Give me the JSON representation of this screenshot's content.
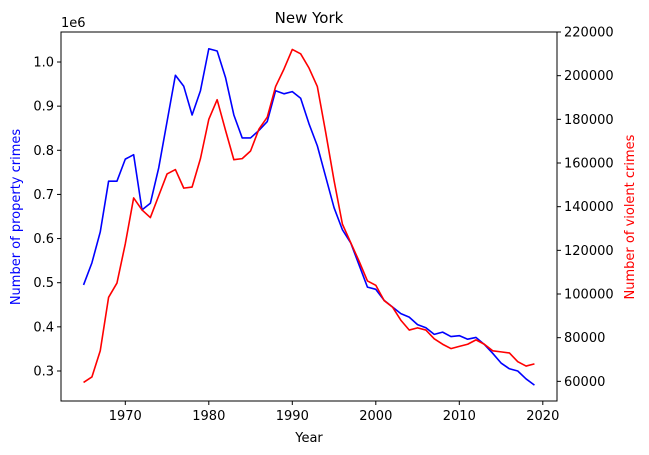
{
  "chart_data": {
    "type": "line",
    "title": "New York",
    "xlabel": "Year",
    "xlim": [
      1962.3,
      2021.7
    ],
    "x_ticks": [
      1970,
      1980,
      1990,
      2000,
      2010,
      2020
    ],
    "left_axis": {
      "label": "Number of property crimes",
      "label_color": "#0000ff",
      "offset_text": "1e6",
      "ylim": [
        0.232,
        1.068
      ],
      "ticks": [
        0.3,
        0.4,
        0.5,
        0.6,
        0.7,
        0.8,
        0.9,
        1.0
      ],
      "tick_labels": [
        "0.3",
        "0.4",
        "0.5",
        "0.6",
        "0.7",
        "0.8",
        "0.9",
        "1.0"
      ]
    },
    "right_axis": {
      "label": "Number of violent crimes",
      "label_color": "#ff0000",
      "ylim": [
        51000,
        220000
      ],
      "ticks": [
        60000,
        80000,
        100000,
        120000,
        140000,
        160000,
        180000,
        200000,
        220000
      ],
      "tick_labels": [
        "60000",
        "80000",
        "100000",
        "120000",
        "140000",
        "160000",
        "180000",
        "200000",
        "220000"
      ]
    },
    "series": [
      {
        "axis": "left",
        "color": "#0000ff",
        "x": [
          1965,
          1966,
          1967,
          1968,
          1969,
          1970,
          1971,
          1972,
          1973,
          1974,
          1975,
          1976,
          1977,
          1978,
          1979,
          1980,
          1981,
          1982,
          1983,
          1984,
          1985,
          1986,
          1987,
          1988,
          1989,
          1990,
          1991,
          1992,
          1993,
          1994,
          1995,
          1996,
          1997,
          1998,
          1999,
          2000,
          2001,
          2002,
          2003,
          2004,
          2005,
          2006,
          2007,
          2008,
          2009,
          2010,
          2011,
          2012,
          2013,
          2014,
          2015,
          2016,
          2017,
          2018,
          2019
        ],
        "values": [
          0.495,
          0.545,
          0.615,
          0.73,
          0.73,
          0.78,
          0.79,
          0.665,
          0.68,
          0.76,
          0.865,
          0.97,
          0.945,
          0.88,
          0.935,
          1.03,
          1.025,
          0.965,
          0.88,
          0.828,
          0.828,
          0.845,
          0.865,
          0.935,
          0.928,
          0.933,
          0.918,
          0.86,
          0.81,
          0.74,
          0.67,
          0.62,
          0.59,
          0.54,
          0.49,
          0.485,
          0.46,
          0.445,
          0.43,
          0.422,
          0.405,
          0.398,
          0.383,
          0.388,
          0.378,
          0.38,
          0.372,
          0.376,
          0.36,
          0.34,
          0.318,
          0.305,
          0.3,
          0.282,
          0.268
        ]
      },
      {
        "axis": "right",
        "color": "#ff0000",
        "x": [
          1965,
          1966,
          1967,
          1968,
          1969,
          1970,
          1971,
          1972,
          1973,
          1974,
          1975,
          1976,
          1977,
          1978,
          1979,
          1980,
          1981,
          1982,
          1983,
          1984,
          1985,
          1986,
          1987,
          1988,
          1989,
          1990,
          1991,
          1992,
          1993,
          1994,
          1995,
          1996,
          1997,
          1998,
          1999,
          2000,
          2001,
          2002,
          2003,
          2004,
          2005,
          2006,
          2007,
          2008,
          2009,
          2010,
          2011,
          2012,
          2013,
          2014,
          2015,
          2016,
          2017,
          2018,
          2019
        ],
        "values": [
          59500,
          62000,
          74000,
          98500,
          105000,
          123000,
          144000,
          138500,
          135000,
          145000,
          155000,
          157000,
          148500,
          149000,
          162000,
          180000,
          189000,
          175000,
          161500,
          162000,
          165500,
          175500,
          181000,
          195000,
          203000,
          212000,
          210000,
          203500,
          195000,
          174000,
          152000,
          132000,
          123500,
          115000,
          106000,
          104000,
          97000,
          94000,
          88000,
          83500,
          84500,
          83500,
          79500,
          77000,
          75000,
          76000,
          77000,
          79000,
          77000,
          74000,
          73500,
          73000,
          69000,
          67000,
          68000
        ]
      }
    ]
  }
}
